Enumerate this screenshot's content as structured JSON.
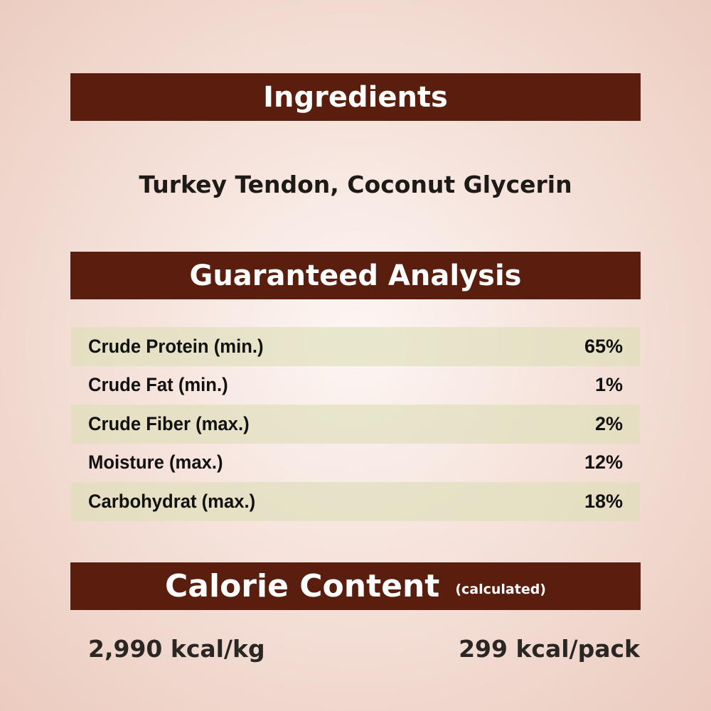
{
  "ingredients": {
    "title": "Ingredients",
    "text": "Turkey Tendon, Coconut Glycerin"
  },
  "analysis": {
    "title": "Guaranteed Analysis",
    "rows": [
      {
        "label": "Crude Protein (min.)",
        "value": "65%"
      },
      {
        "label": "Crude Fat (min.)",
        "value": "1%"
      },
      {
        "label": "Crude Fiber (max.)",
        "value": "2%"
      },
      {
        "label": "Moisture (max.)",
        "value": "12%"
      },
      {
        "label": "Carbohydrat (max.)",
        "value": "18%"
      }
    ]
  },
  "calorie": {
    "title": "Calorie Content",
    "subtitle": "(calculated)",
    "per_kg": "2,990 kcal/kg",
    "per_pack": "299 kcal/pack"
  },
  "colors": {
    "header_band": "#5a1e0e",
    "row_stripe": "#dddeb9"
  }
}
